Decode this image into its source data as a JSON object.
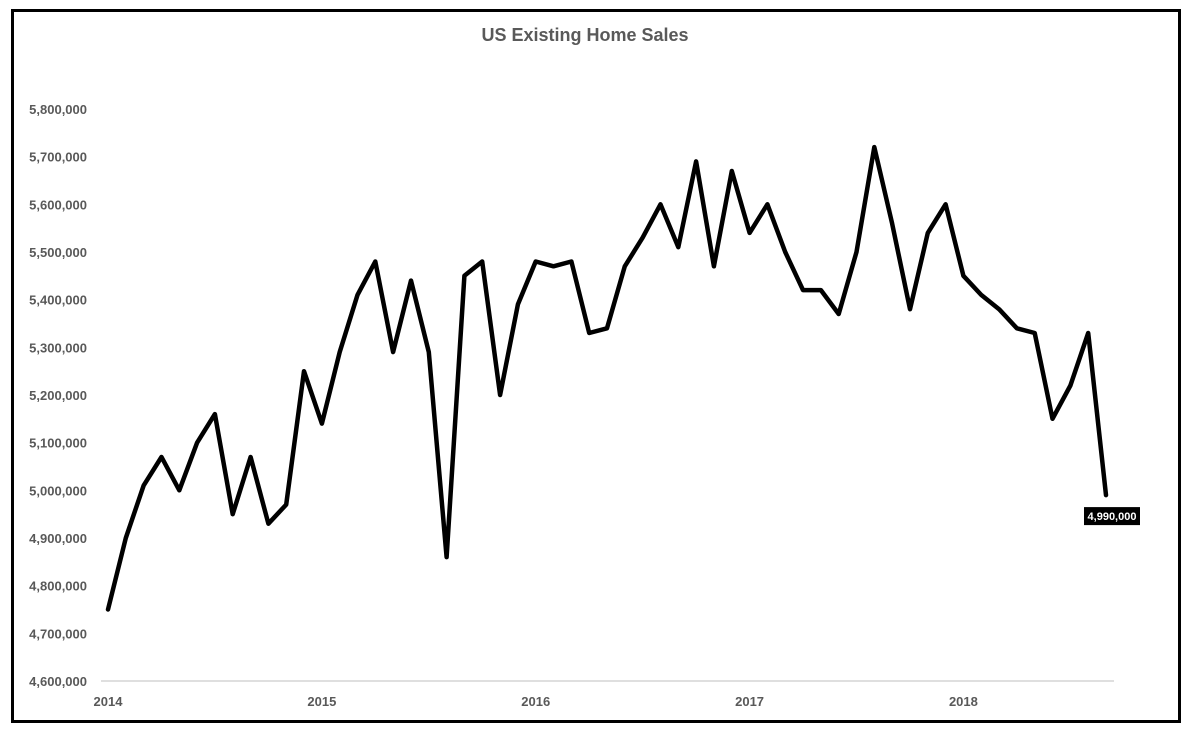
{
  "chart_data": {
    "type": "line",
    "title": "US Existing Home Sales",
    "xlabel": "",
    "ylabel": "",
    "ylim": [
      4600000,
      5800000
    ],
    "y_ticks": [
      "4,600,000",
      "4,700,000",
      "4,800,000",
      "4,900,000",
      "5,000,000",
      "5,100,000",
      "5,200,000",
      "5,300,000",
      "5,400,000",
      "5,500,000",
      "5,600,000",
      "5,700,000",
      "5,800,000"
    ],
    "x_ticks": [
      "2014",
      "2015",
      "2016",
      "2017",
      "2018"
    ],
    "grid": false,
    "legend": "none",
    "line_color": "#000000",
    "series": [
      {
        "x": [
          "2014-01",
          "2014-02",
          "2014-03",
          "2014-04",
          "2014-05",
          "2014-06",
          "2014-07",
          "2014-08",
          "2014-09",
          "2014-10",
          "2014-11",
          "2014-12",
          "2015-01",
          "2015-02",
          "2015-03",
          "2015-04",
          "2015-05",
          "2015-06",
          "2015-07",
          "2015-08",
          "2015-09",
          "2015-10",
          "2015-11",
          "2015-12",
          "2016-01",
          "2016-02",
          "2016-03",
          "2016-04",
          "2016-05",
          "2016-06",
          "2016-07",
          "2016-08",
          "2016-09",
          "2016-10",
          "2016-11",
          "2016-12",
          "2017-01",
          "2017-02",
          "2017-03",
          "2017-04",
          "2017-05",
          "2017-06",
          "2017-07",
          "2017-08",
          "2017-09",
          "2017-10",
          "2017-11",
          "2017-12",
          "2018-01",
          "2018-02",
          "2018-03",
          "2018-04",
          "2018-05",
          "2018-06",
          "2018-07",
          "2018-08",
          "2018-09"
        ],
        "values": [
          4750000,
          4900000,
          5010000,
          5070000,
          5000000,
          5100000,
          5160000,
          4950000,
          5070000,
          4930000,
          4970000,
          5250000,
          5140000,
          5290000,
          5410000,
          5480000,
          5290000,
          5440000,
          5290000,
          4860000,
          5450000,
          5480000,
          5200000,
          5390000,
          5480000,
          5470000,
          5480000,
          5330000,
          5340000,
          5470000,
          5530000,
          5600000,
          5510000,
          5690000,
          5470000,
          5670000,
          5540000,
          5600000,
          5500000,
          5420000,
          5420000,
          5370000,
          5500000,
          5720000,
          5560000,
          5380000,
          5540000,
          5600000,
          5450000,
          5410000,
          5380000,
          5340000,
          5330000,
          5150000,
          5220000,
          5330000,
          4990000
        ]
      }
    ],
    "annotations": [
      {
        "x": "2018-09",
        "label": "4,990,000"
      }
    ]
  }
}
